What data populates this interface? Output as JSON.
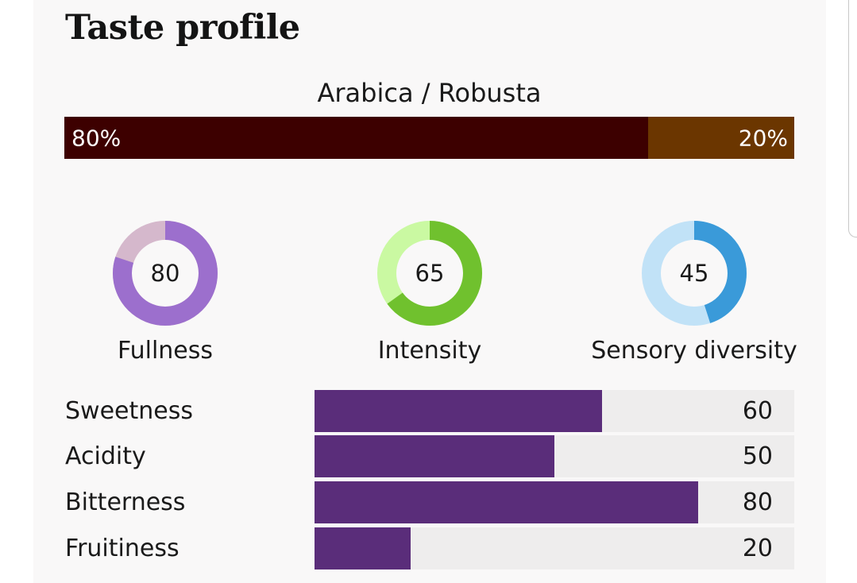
{
  "title": "Taste profile",
  "blend": {
    "title": "Arabica / Robusta",
    "arabica": {
      "percent": 80,
      "label": "80%",
      "color": "#3d0000"
    },
    "robusta": {
      "percent": 20,
      "label": "20%",
      "color": "#6b3600"
    }
  },
  "gauges": [
    {
      "label": "Fullness",
      "value": 80,
      "value_text": "80",
      "color": "#9c6fcd",
      "track_color": "#d5b8cc"
    },
    {
      "label": "Intensity",
      "value": 65,
      "value_text": "65",
      "color": "#70c12e",
      "track_color": "#caf9a2"
    },
    {
      "label": "Sensory diversity",
      "value": 45,
      "value_text": "45",
      "color": "#3a9ad9",
      "track_color": "#c1e2f7"
    }
  ],
  "attributes": [
    {
      "label": "Sweetness",
      "value": 60,
      "value_text": "60"
    },
    {
      "label": "Acidity",
      "value": 50,
      "value_text": "50"
    },
    {
      "label": "Bitterness",
      "value": 80,
      "value_text": "80"
    },
    {
      "label": "Fruitiness",
      "value": 20,
      "value_text": "20"
    }
  ],
  "attribute_max": 100,
  "attribute_color": "#5a2d7a"
}
